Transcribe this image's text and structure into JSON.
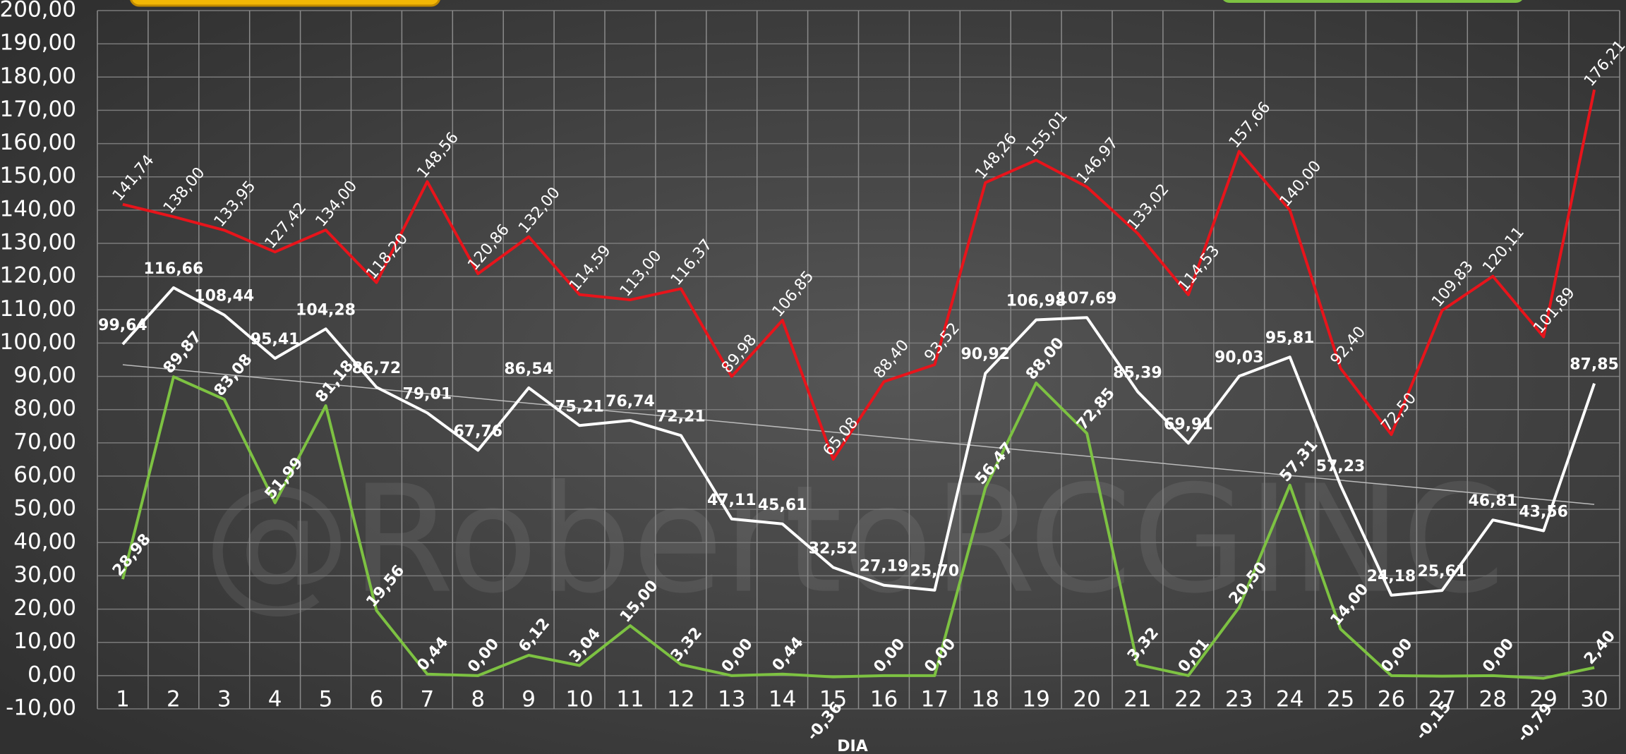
{
  "chart_data": {
    "type": "line",
    "watermark": "@RobertoRCGINC",
    "x_label": "DIA",
    "categories": [
      "1",
      "2",
      "3",
      "4",
      "5",
      "6",
      "7",
      "8",
      "9",
      "10",
      "11",
      "12",
      "13",
      "14",
      "15",
      "16",
      "17",
      "18",
      "19",
      "20",
      "21",
      "22",
      "23",
      "24",
      "25",
      "26",
      "27",
      "28",
      "29",
      "30"
    ],
    "ylim": [
      -10,
      200
    ],
    "yticks": [
      {
        "value": -10,
        "label": "-10,00"
      },
      {
        "value": 0,
        "label": "0,00"
      },
      {
        "value": 10,
        "label": "10,00"
      },
      {
        "value": 20,
        "label": "20,00"
      },
      {
        "value": 30,
        "label": "30,00"
      },
      {
        "value": 40,
        "label": "40,00"
      },
      {
        "value": 50,
        "label": "50,00"
      },
      {
        "value": 60,
        "label": "60,00"
      },
      {
        "value": 70,
        "label": "70,00"
      },
      {
        "value": 80,
        "label": "80,00"
      },
      {
        "value": 90,
        "label": "90,00"
      },
      {
        "value": 100,
        "label": "100,00"
      },
      {
        "value": 110,
        "label": "110,00"
      },
      {
        "value": 120,
        "label": "120,00"
      },
      {
        "value": 130,
        "label": "130,00"
      },
      {
        "value": 140,
        "label": "140,00"
      },
      {
        "value": 150,
        "label": "150,00"
      },
      {
        "value": 160,
        "label": "160,00"
      },
      {
        "value": 170,
        "label": "170,00"
      },
      {
        "value": 180,
        "label": "180,00"
      },
      {
        "value": 190,
        "label": "190,00"
      },
      {
        "value": 200,
        "label": "200,00"
      }
    ],
    "grid": true,
    "trend": {
      "color": "#bbbbbb",
      "values": [
        93.5,
        51.5
      ]
    },
    "series": [
      {
        "color": "#e8141b",
        "label_style": "rotated",
        "values": [
          141.74,
          138.0,
          133.95,
          127.42,
          134.0,
          118.2,
          148.56,
          120.86,
          132.0,
          114.59,
          113.0,
          116.37,
          89.98,
          106.85,
          65.08,
          88.4,
          93.52,
          148.26,
          155.01,
          146.97,
          133.02,
          114.53,
          157.66,
          140.0,
          92.4,
          72.5,
          109.83,
          120.11,
          101.89,
          176.21
        ],
        "value_labels": [
          "141,74",
          "138,00",
          "133,95",
          "127,42",
          "134,00",
          "118,20",
          "148,56",
          "120,86",
          "132,00",
          "114,59",
          "113,00",
          "116,37",
          "89,98",
          "106,85",
          "65,08",
          "88,40",
          "93,52",
          "148,26",
          "155,01",
          "146,97",
          "133,02",
          "114,53",
          "157,66",
          "140,00",
          "92,40",
          "72,50",
          "109,83",
          "120,11",
          "101,89",
          "176,21"
        ]
      },
      {
        "color": "#ffffff",
        "label_style": "flat",
        "values": [
          99.64,
          116.66,
          108.44,
          95.41,
          104.28,
          86.72,
          79.01,
          67.76,
          86.54,
          75.21,
          76.74,
          72.21,
          47.11,
          45.61,
          32.52,
          27.19,
          25.7,
          90.92,
          106.98,
          107.69,
          85.39,
          69.91,
          90.03,
          95.81,
          57.23,
          24.18,
          25.61,
          46.81,
          43.56,
          87.85
        ],
        "value_labels": [
          "99,64",
          "116,66",
          "108,44",
          "95,41",
          "104,28",
          "86,72",
          "79,01",
          "67,76",
          "86,54",
          "75,21",
          "76,74",
          "72,21",
          "47,11",
          "45,61",
          "32,52",
          "27,19",
          "25,70",
          "90,92",
          "106,98",
          "107,69",
          "85,39",
          "69,91",
          "90,03",
          "95,81",
          "57,23",
          "24,18",
          "25,61",
          "46,81",
          "43,56",
          "87,85"
        ]
      },
      {
        "color": "#7dc242",
        "label_style": "rotated-bold",
        "values": [
          28.98,
          89.87,
          83.08,
          51.99,
          81.18,
          19.56,
          0.44,
          0.0,
          6.12,
          3.04,
          15.0,
          3.32,
          0.0,
          0.44,
          -0.36,
          0.0,
          0.0,
          56.47,
          88.0,
          72.85,
          3.32,
          0.01,
          20.5,
          57.31,
          14.0,
          0.0,
          -0.15,
          0.0,
          -0.79,
          2.4
        ],
        "value_labels": [
          "28,98",
          "89,87",
          "83,08",
          "51,99",
          "81,18",
          "19,56",
          "0,44",
          "0,00",
          "6,12",
          "3,04",
          "15,00",
          "3,32",
          "0,00",
          "0,44",
          "-0,36",
          "0,00",
          "0,00",
          "56,47",
          "88,00",
          "72,85",
          "3,32",
          "0,01",
          "20,50",
          "57,31",
          "14,00",
          "0,00",
          "-0,15",
          "0,00",
          "-0,79",
          "2,40"
        ]
      }
    ]
  }
}
